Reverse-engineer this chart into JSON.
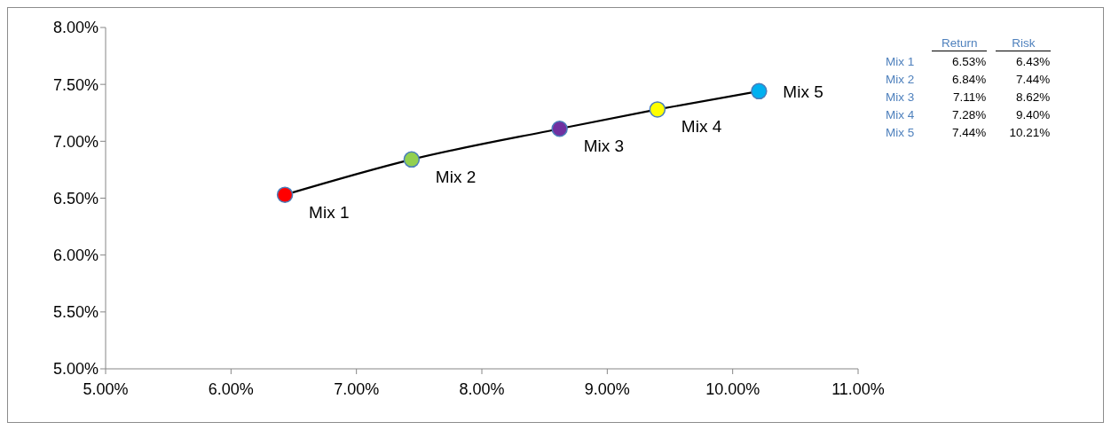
{
  "chart_data": [
    {
      "type": "line",
      "x": [
        6.43,
        7.44,
        8.62,
        9.4,
        10.21
      ],
      "series": [
        {
          "color": "#000000",
          "values": [
            6.53,
            6.84,
            7.11,
            7.28,
            7.44
          ],
          "colors": [
            "#ff0000",
            "#92d050",
            "#7030a0",
            "#ffff00",
            "#00b0f0"
          ]
        }
      ],
      "xlim": [
        5,
        11
      ],
      "xticks": [
        {
          "value": 5,
          "label": "5.00%"
        },
        {
          "value": 6,
          "label": "6.00%"
        },
        {
          "value": 7,
          "label": "7.00%"
        },
        {
          "value": 8,
          "label": "8.00%"
        },
        {
          "value": 9,
          "label": "9.00%"
        },
        {
          "value": 10,
          "label": "10.00%"
        },
        {
          "value": 11,
          "label": "11.00%"
        }
      ],
      "ylim": [
        5,
        8
      ],
      "yticks": [
        {
          "value": 5,
          "label": "5.00%"
        },
        {
          "value": 5.5,
          "label": "5.50%"
        },
        {
          "value": 6,
          "label": "6.00%"
        },
        {
          "value": 6.5,
          "label": "6.50%"
        },
        {
          "value": 7,
          "label": "7.00%"
        },
        {
          "value": 7.5,
          "label": "7.50%"
        },
        {
          "value": 8,
          "label": "8.00%"
        }
      ],
      "annotations": [
        {
          "text": "Mix 1",
          "x": 6.43,
          "y": 6.53
        },
        {
          "text": "Mix 2",
          "x": 7.44,
          "y": 6.84
        },
        {
          "text": "Mix 3",
          "x": 8.62,
          "y": 7.11
        },
        {
          "text": "Mix 4",
          "x": 9.4,
          "y": 7.28
        },
        {
          "text": "Mix 5",
          "x": 10.21,
          "y": 7.44
        }
      ],
      "grid": false,
      "marker": "circle",
      "line_style": "solid"
    },
    {
      "type": "other",
      "annotations": [
        "Return",
        "Risk",
        "Mix 1",
        "6.53%",
        "6.43%",
        "Mix 2",
        "6.84%",
        "7.44%",
        "Mix 3",
        "7.11%",
        "8.62%",
        "Mix 4",
        "7.28%",
        "9.40%",
        "Mix 5",
        "7.44%",
        "10.21%"
      ]
    }
  ]
}
